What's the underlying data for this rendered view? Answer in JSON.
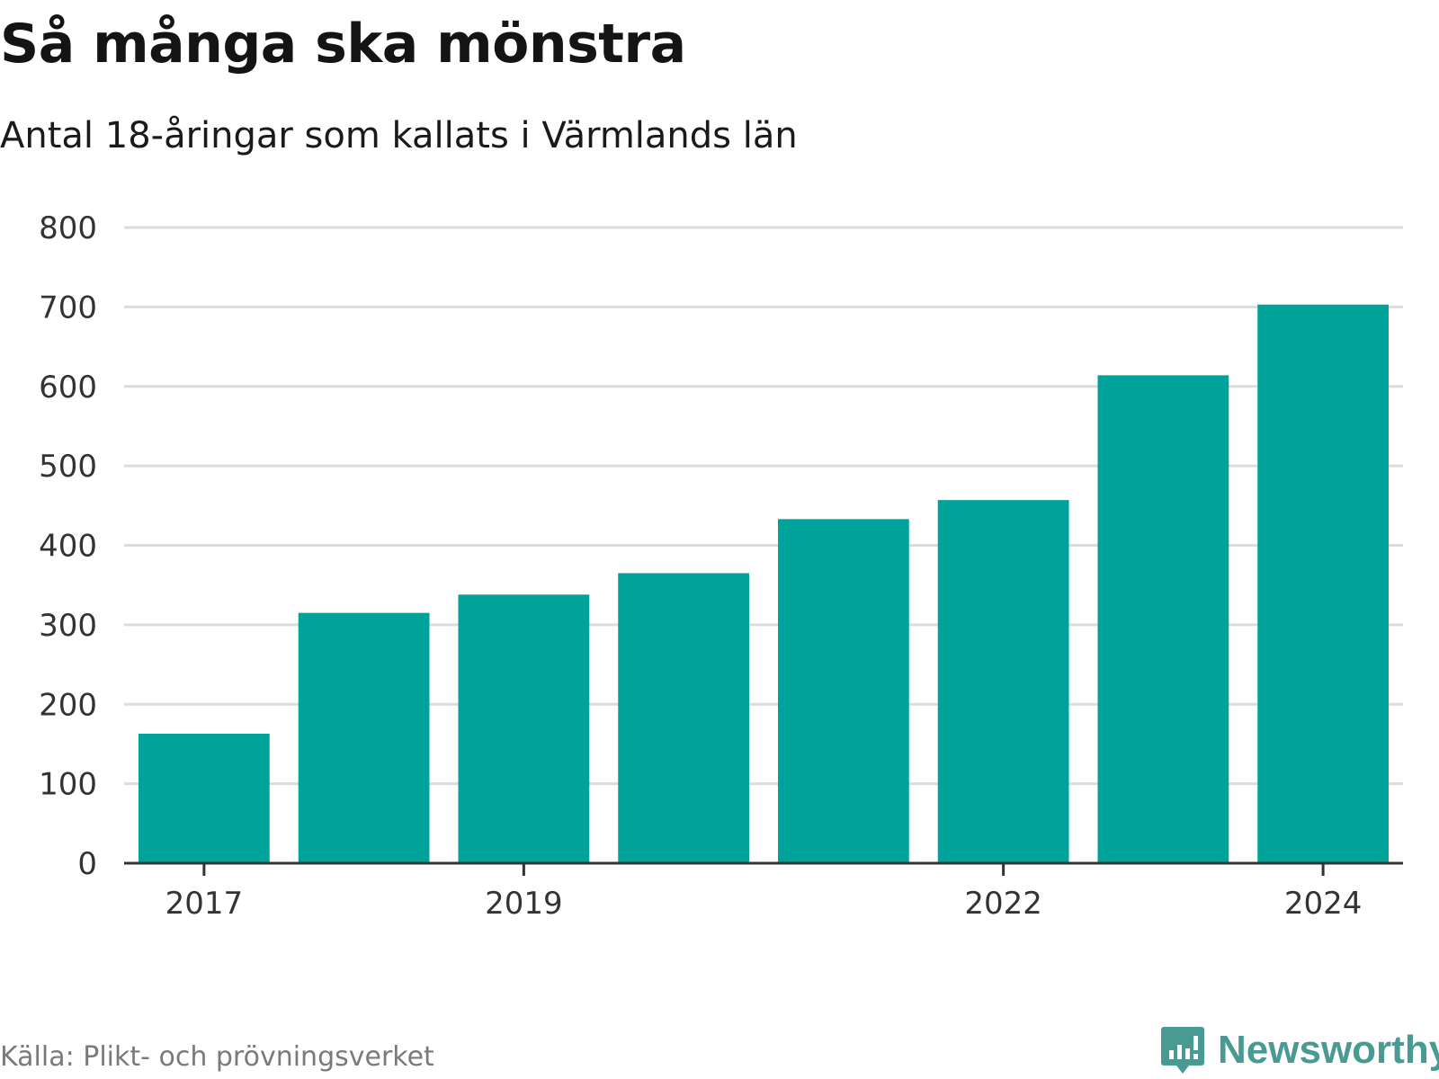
{
  "header": {
    "title": "Så många ska mönstra",
    "subtitle": "Antal 18-åringar som kallats i Värmlands län"
  },
  "footer": {
    "source": "Källa: Plikt- och prövningsverket",
    "brand_name": "Newsworthy",
    "brand_icon": "bar-chart-speech-bubble-icon"
  },
  "colors": {
    "bar": "#00A39A",
    "grid": "#dcdcdc",
    "axis": "#333333",
    "brand": "#4a9a94"
  },
  "chart_data": {
    "type": "bar",
    "title": "Så många ska mönstra",
    "subtitle": "Antal 18-åringar som kallats i Värmlands län",
    "categories": [
      "2017",
      "2018",
      "2019",
      "2020",
      "2021",
      "2022",
      "2023",
      "2024"
    ],
    "values": [
      163,
      315,
      338,
      365,
      433,
      457,
      614,
      703
    ],
    "x_tick_labels": [
      "2017",
      "2019",
      "2022",
      "2024"
    ],
    "y_ticks": [
      0,
      100,
      200,
      300,
      400,
      500,
      600,
      700,
      800
    ],
    "ylim": [
      0,
      800
    ],
    "xlabel": "",
    "ylabel": "",
    "grid": true,
    "legend": "none"
  }
}
